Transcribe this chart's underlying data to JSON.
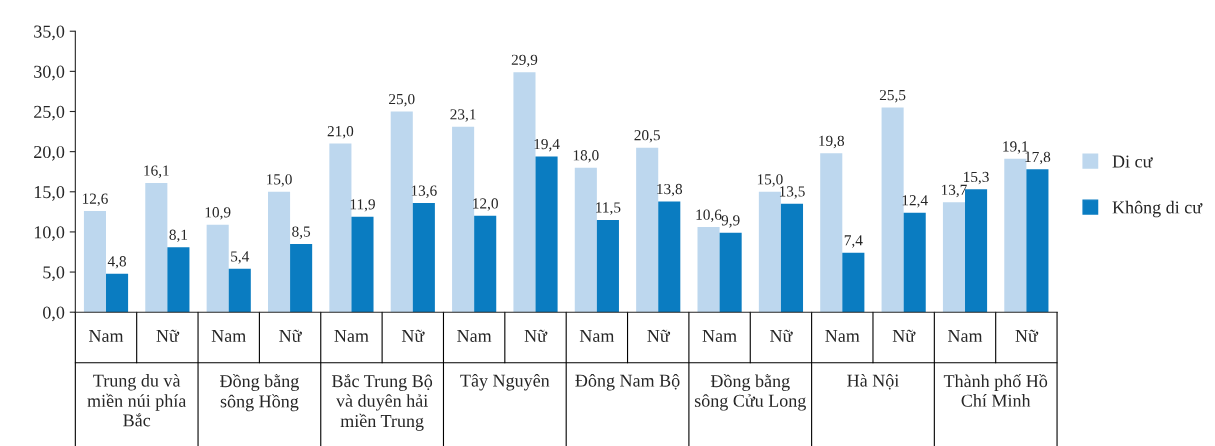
{
  "chart_data": {
    "type": "bar",
    "categories": [
      "Nam",
      "Nữ",
      "Nam",
      "Nữ",
      "Nam",
      "Nữ",
      "Nam",
      "Nữ",
      "Nam",
      "Nữ",
      "Nam",
      "Nữ",
      "Nam",
      "Nữ",
      "Nam",
      "Nữ"
    ],
    "annotations": [
      "Trung du và miền núi phía Bắc",
      "Đồng bằng sông Hồng",
      "Bắc Trung Bộ và duyên hải miền Trung",
      "Tây Nguyên",
      "Đông Nam Bộ",
      "Đồng bằng sông Cửu Long",
      "Hà Nội",
      "Thành phố Hồ Chí Minh"
    ],
    "series": [
      {
        "name": "Di cư",
        "color": "#bdd7ee",
        "values": [
          12.6,
          16.1,
          10.9,
          15.0,
          21.0,
          25.0,
          23.1,
          29.9,
          18.0,
          20.5,
          10.6,
          15.0,
          19.8,
          25.5,
          13.7,
          19.1
        ],
        "value_labels": [
          "12,6",
          "16,1",
          "10,9",
          "15,0",
          "21,0",
          "25,0",
          "23,1",
          "29,9",
          "18,0",
          "20,5",
          "10,6",
          "15,0",
          "19,8",
          "25,5",
          "13,7",
          "19,1"
        ]
      },
      {
        "name": "Không di cư",
        "color": "#0a7cc1",
        "values": [
          4.8,
          8.1,
          5.4,
          8.5,
          11.9,
          13.6,
          12.0,
          19.4,
          11.5,
          13.8,
          9.9,
          13.5,
          7.4,
          12.4,
          15.3,
          17.8
        ],
        "value_labels": [
          "4,8",
          "8,1",
          "5,4",
          "8,5",
          "11,9",
          "13,6",
          "12,0",
          "19,4",
          "11,5",
          "13,8",
          "9,9",
          "13,5",
          "7,4",
          "12,4",
          "15,3",
          "17,8"
        ]
      }
    ],
    "ylim": [
      0,
      35
    ],
    "yticks": [
      {
        "value": 0,
        "label": "0,0"
      },
      {
        "value": 5,
        "label": "5,0"
      },
      {
        "value": 10,
        "label": "10,0"
      },
      {
        "value": 15,
        "label": "15,0"
      },
      {
        "value": 20,
        "label": "20,0"
      },
      {
        "value": 25,
        "label": "25,0"
      },
      {
        "value": 30,
        "label": "30,0"
      },
      {
        "value": 35,
        "label": "35,0"
      }
    ],
    "grid": false,
    "legend": "right"
  }
}
